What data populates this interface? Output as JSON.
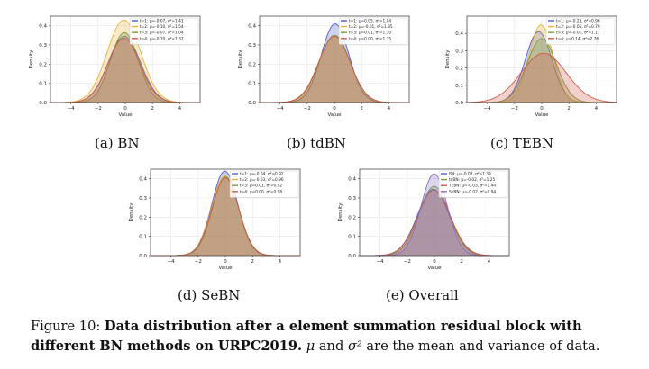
{
  "figure": {
    "label": "Figure 10:",
    "title": "Data distribution after a element summation residual block with different BN methods on URPC2019.",
    "mu": "μ",
    "and_text": " and ",
    "sigma2": "σ²",
    "tail": " are the mean and variance of data."
  },
  "chart_data": [
    {
      "id": "a",
      "subcaption": "(a) BN",
      "type": "area",
      "xlabel": "Value",
      "ylabel": "Density",
      "xlim": [
        -5.5,
        5.5
      ],
      "ylim": [
        0,
        0.45
      ],
      "xticks": [
        -4,
        -2,
        0,
        2,
        4
      ],
      "yticks": [
        0.0,
        0.1,
        0.2,
        0.3,
        0.4
      ],
      "legend": "top-right",
      "series": [
        {
          "name": "t=1: μ=-0.07, σ²=1.41",
          "mu": -0.07,
          "var": 1.41,
          "peak": 0.345,
          "color": "#4c5cc8"
        },
        {
          "name": "t=2: μ=-0.10, σ²=1.54",
          "mu": -0.1,
          "var": 1.54,
          "peak": 0.43,
          "color": "#e8b33c"
        },
        {
          "name": "t=3: μ=-0.07, σ²=1.04",
          "mu": -0.07,
          "var": 1.04,
          "peak": 0.365,
          "color": "#7a9a3a"
        },
        {
          "name": "t=4: μ=-0.10, σ²=1.37",
          "mu": -0.1,
          "var": 1.37,
          "peak": 0.335,
          "color": "#d05a4a"
        }
      ]
    },
    {
      "id": "b",
      "subcaption": "(b) tdBN",
      "type": "area",
      "xlabel": "Value",
      "ylabel": "Density",
      "xlim": [
        -5.5,
        5.5
      ],
      "ylim": [
        0,
        0.45
      ],
      "xticks": [
        -4,
        -2,
        0,
        2,
        4
      ],
      "yticks": [
        0.0,
        0.1,
        0.2,
        0.3,
        0.4
      ],
      "legend": "top-right",
      "series": [
        {
          "name": "t=1: μ=0.05, σ²=1.04",
          "mu": 0.05,
          "var": 1.04,
          "peak": 0.41,
          "color": "#4c5cc8"
        },
        {
          "name": "t=2: μ=-0.01, σ²=1.35",
          "mu": -0.01,
          "var": 1.35,
          "peak": 0.345,
          "color": "#e8b33c"
        },
        {
          "name": "t=3: μ=0.01, σ²=1.30",
          "mu": 0.01,
          "var": 1.3,
          "peak": 0.35,
          "color": "#7a9a3a"
        },
        {
          "name": "t=4: μ=0.00, σ²=1.35",
          "mu": 0.0,
          "var": 1.35,
          "peak": 0.345,
          "color": "#d05a4a"
        }
      ]
    },
    {
      "id": "c",
      "subcaption": "(c) TEBN",
      "type": "area",
      "xlabel": "Value",
      "ylabel": "Density",
      "xlim": [
        -5.5,
        5.5
      ],
      "ylim": [
        0,
        0.5
      ],
      "xticks": [
        -4,
        -2,
        0,
        2,
        4
      ],
      "yticks": [
        0.0,
        0.1,
        0.2,
        0.3,
        0.4
      ],
      "legend": "top-right",
      "series": [
        {
          "name": "t=1: μ=-0.23, σ²=0.96",
          "mu": -0.23,
          "var": 0.96,
          "peak": 0.41,
          "color": "#4c5cc8"
        },
        {
          "name": "t=2: μ=-0.05, σ²=0.79",
          "mu": -0.05,
          "var": 0.79,
          "peak": 0.45,
          "color": "#e8b33c"
        },
        {
          "name": "t=3: μ=-0.01, σ²=1.17",
          "mu": -0.01,
          "var": 1.17,
          "peak": 0.37,
          "color": "#7a9a3a"
        },
        {
          "name": "t=4: μ=0.14, σ²=2.76",
          "mu": 0.14,
          "var": 2.76,
          "peak": 0.285,
          "color": "#d05a4a"
        }
      ]
    },
    {
      "id": "d",
      "subcaption": "(d) SeBN",
      "type": "area",
      "xlabel": "Value",
      "ylabel": "Density",
      "xlim": [
        -5.5,
        5.5
      ],
      "ylim": [
        0,
        0.45
      ],
      "xticks": [
        -4,
        -2,
        0,
        2,
        4
      ],
      "yticks": [
        0.0,
        0.1,
        0.2,
        0.3,
        0.4
      ],
      "legend": "top-right",
      "series": [
        {
          "name": "t=1: μ=-0.04, σ²=0.92",
          "mu": -0.04,
          "var": 0.92,
          "peak": 0.44,
          "color": "#4c5cc8"
        },
        {
          "name": "t=2: μ=-0.03, σ²=0.96",
          "mu": -0.03,
          "var": 0.96,
          "peak": 0.415,
          "color": "#e8b33c"
        },
        {
          "name": "t=3: μ=0.01, σ²=0.92",
          "mu": 0.01,
          "var": 0.92,
          "peak": 0.41,
          "color": "#7a9a3a"
        },
        {
          "name": "t=4: μ=0.00, σ²=0.98",
          "mu": 0.0,
          "var": 0.98,
          "peak": 0.405,
          "color": "#d05a4a"
        }
      ]
    },
    {
      "id": "e",
      "subcaption": "(e) Overall",
      "type": "area",
      "xlabel": "Value",
      "ylabel": "Density",
      "xlim": [
        -5.5,
        5.5
      ],
      "ylim": [
        0,
        0.45
      ],
      "xticks": [
        -4,
        -2,
        0,
        2,
        4
      ],
      "yticks": [
        0.0,
        0.1,
        0.2,
        0.3,
        0.4
      ],
      "legend": "top-right",
      "series": [
        {
          "name": "BN: μ=-0.08, σ²=1.39",
          "mu": -0.08,
          "var": 1.39,
          "peak": 0.345,
          "color": "#4c5cc8"
        },
        {
          "name": "tdBN: μ=-0.02, σ²=1.25",
          "mu": -0.02,
          "var": 1.25,
          "peak": 0.36,
          "color": "#7a9a3a"
        },
        {
          "name": "TEBN: μ=-0.03, σ²=1.44",
          "mu": -0.03,
          "var": 1.44,
          "peak": 0.34,
          "color": "#d05a4a"
        },
        {
          "name": "SeBN: μ=-0.02, σ²=0.94",
          "mu": -0.02,
          "var": 0.94,
          "peak": 0.425,
          "color": "#8a6cc0"
        }
      ]
    }
  ]
}
